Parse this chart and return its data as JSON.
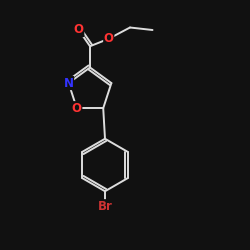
{
  "background_color": "#111111",
  "bond_color": "#dddddd",
  "atom_colors": {
    "O": "#ff3333",
    "N": "#3333ff",
    "Br": "#cc3333",
    "C": "#dddddd"
  },
  "font_size_atom": 8.5,
  "figsize": [
    2.5,
    2.5
  ],
  "dpi": 100
}
